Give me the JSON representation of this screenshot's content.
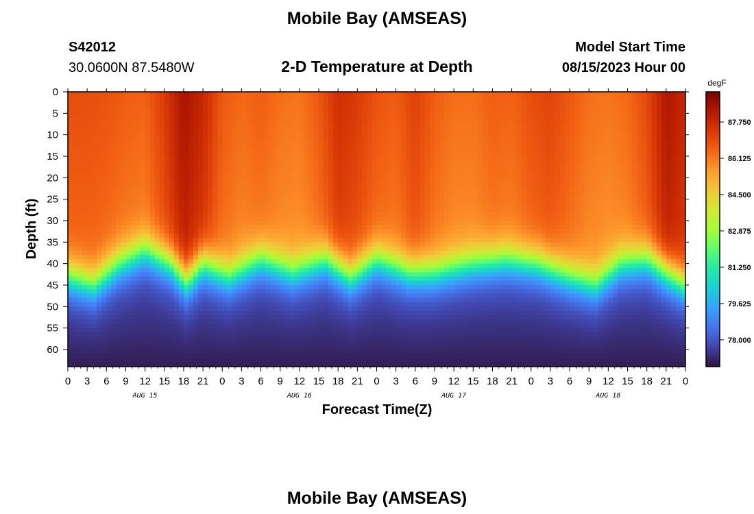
{
  "header": {
    "title": "Mobile Bay (AMSEAS)",
    "station_id": "S42012",
    "station_coords": "30.0600N  87.5480W",
    "plot_title": "2-D Temperature at Depth",
    "model_start_label": "Model Start Time",
    "model_start_value": "08/15/2023 Hour 00"
  },
  "footer": {
    "title_repeat": "Mobile Bay (AMSEAS)"
  },
  "colors": {
    "scale": [
      "#30123b",
      "#4145ab",
      "#4675ed",
      "#39a2fc",
      "#1bcfd4",
      "#24eca6",
      "#61fc6c",
      "#a4fc3b",
      "#d1e834",
      "#f3c63a",
      "#fe9b2d",
      "#f36315",
      "#d93806",
      "#b11901",
      "#7a0402"
    ]
  },
  "chart_data": {
    "type": "heatmap",
    "title": "2-D Temperature at Depth",
    "xlabel": "Forecast Time(Z)",
    "ylabel": "Depth (ft)",
    "x_ticks": [
      "0",
      "3",
      "6",
      "9",
      "12",
      "15",
      "18",
      "21",
      "0",
      "3",
      "6",
      "9",
      "12",
      "15",
      "18",
      "21",
      "0",
      "3",
      "6",
      "9",
      "12",
      "15",
      "18",
      "21",
      "0",
      "3",
      "6",
      "9",
      "12",
      "15",
      "18",
      "21",
      "0"
    ],
    "day_labels": [
      "AUG 15",
      "AUG 16",
      "AUG 17",
      "AUG 18"
    ],
    "y_ticks": [
      "0",
      "5",
      "10",
      "15",
      "20",
      "25",
      "30",
      "35",
      "40",
      "45",
      "50",
      "55",
      "60"
    ],
    "xlim_hours": [
      0,
      96
    ],
    "ylim_ft": [
      0,
      64
    ],
    "colorbar": {
      "unit": "degF",
      "ticks": [
        "87.750",
        "86.125",
        "84.500",
        "82.875",
        "81.250",
        "79.625",
        "78.000"
      ],
      "range": [
        76.8,
        89.1
      ]
    },
    "thermocline_depth_ft": {
      "hours": [
        0,
        4,
        8,
        12,
        16,
        18.5,
        21,
        25,
        30,
        35,
        40,
        44,
        48,
        53,
        57,
        63,
        68,
        73,
        78,
        82,
        86,
        90,
        93,
        96
      ],
      "depth": [
        43,
        45,
        40,
        37,
        40,
        44,
        40,
        43,
        39,
        42,
        39,
        43,
        39,
        42,
        42,
        40,
        39,
        40,
        43,
        45,
        40,
        39,
        42,
        45
      ]
    },
    "surface_temp_degF": {
      "hours": [
        0,
        3,
        6,
        9,
        12,
        15,
        18,
        21,
        24,
        27,
        30,
        33,
        36,
        39,
        42,
        45,
        48,
        51,
        54,
        57,
        60,
        63,
        66,
        69,
        72,
        75,
        78,
        81,
        84,
        87,
        90,
        93,
        96
      ],
      "values": [
        86.9,
        86.9,
        86.8,
        86.6,
        86.5,
        87.3,
        88.4,
        87.8,
        86.7,
        86.4,
        86.6,
        86.3,
        86.2,
        86.7,
        87.6,
        87.3,
        86.8,
        86.6,
        87.2,
        86.6,
        86.3,
        86.3,
        86.6,
        86.5,
        86.9,
        87.1,
        86.7,
        86.3,
        86.2,
        86.4,
        87.0,
        88.3,
        87.8
      ]
    },
    "bottom_temp_degF": 77.0
  }
}
